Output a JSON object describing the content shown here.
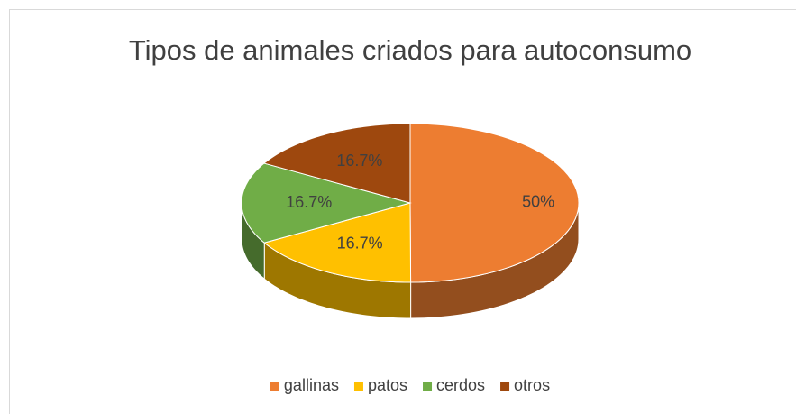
{
  "chart_data": {
    "type": "pie",
    "title": "Tipos de animales criados para autoconsumo",
    "categories": [
      "gallinas",
      "patos",
      "cerdos",
      "otros"
    ],
    "values": [
      50,
      16.7,
      16.7,
      16.7
    ],
    "value_labels": [
      "50%",
      "16.7%",
      "16.7%",
      "16.7%"
    ],
    "colors": [
      "#ed7d31",
      "#ffc000",
      "#70ad47",
      "#9e480e"
    ],
    "legend": "bottom"
  }
}
